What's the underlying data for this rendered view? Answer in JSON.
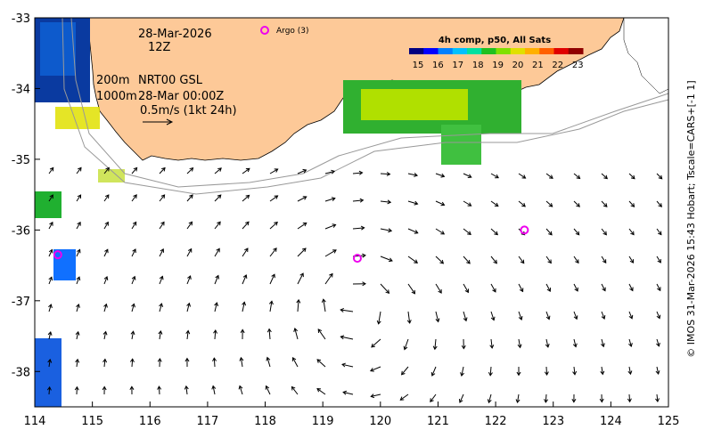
{
  "map": {
    "date": "28-Mar-2026",
    "hour": "12Z",
    "depth_line1": "200m",
    "depth_line2": "1000m",
    "product": "NRT00 GSL",
    "product_time": "28-Mar 00:00Z",
    "vector_scale": "0.5m/s (1kt 24h)",
    "argo_label": "Argo (3)",
    "credit": "© IMOS 31-Mar-2026 15:43 Hobart; Tscale=CARS+[-1 1]"
  },
  "colorbar": {
    "title": "4h comp, p50, All Sats",
    "ticks": [
      "15",
      "16",
      "17",
      "18",
      "19",
      "20",
      "21",
      "22",
      "23"
    ],
    "colors": [
      "#000080",
      "#0000ff",
      "#0080ff",
      "#00c0ff",
      "#00e0a0",
      "#20c020",
      "#80e000",
      "#e0e000",
      "#ffb000",
      "#ff6000",
      "#e00000",
      "#900000"
    ]
  },
  "axes": {
    "x_ticks": [
      "114",
      "115",
      "116",
      "117",
      "118",
      "119",
      "120",
      "121",
      "122",
      "123",
      "124",
      "125"
    ],
    "y_ticks": [
      "-33",
      "-34",
      "-35",
      "-36",
      "-37",
      "-38"
    ],
    "lon_range": [
      114,
      125
    ],
    "lat_range": [
      -38.5,
      -33
    ]
  },
  "argo_floats": [
    {
      "lon": 114.4,
      "lat": -36.35
    },
    {
      "lon": 119.6,
      "lat": -36.4
    },
    {
      "lon": 122.5,
      "lat": -36.0
    }
  ],
  "colors": {
    "land": "#fdc998",
    "argo": "#ee00ee",
    "isobath": "#999999"
  }
}
